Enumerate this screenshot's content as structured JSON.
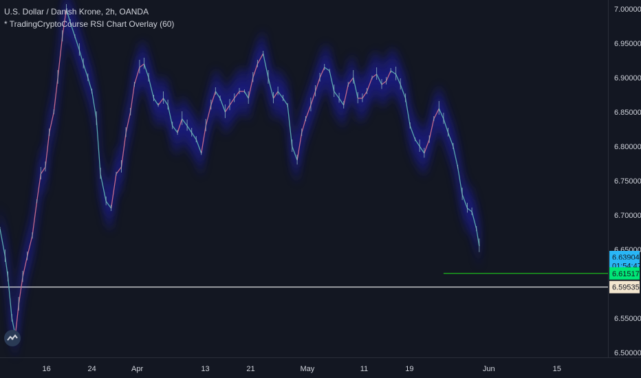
{
  "legend": {
    "title": "U.S. Dollar / Danish Krone, 2h, OANDA",
    "indicator": "* TradingCryptoCourse RSI Chart Overlay (60)"
  },
  "logo_icon": "tradingview-logo-icon",
  "colors": {
    "background": "#131722",
    "price_line": "#5aa9ad",
    "band": "#1b1e8c",
    "green_line": "#1ec91e",
    "white_line": "#ffffff",
    "badge_blue": "#29b6f6",
    "badge_green": "#00e676",
    "badge_cream": "#f3e6cf"
  },
  "price_badges": [
    {
      "label": "6.63904",
      "value": 6.63904,
      "color": "#29b6f6",
      "text_color": "#131722"
    },
    {
      "label": "01:54:47",
      "value": 6.6265,
      "color": "#29b6f6",
      "text_color": "#131722"
    },
    {
      "label": "6.61517",
      "value": 6.61517,
      "color": "#00e676",
      "text_color": "#131722"
    },
    {
      "label": "6.59535",
      "value": 6.59535,
      "color": "#f3e6cf",
      "text_color": "#131722"
    }
  ],
  "chart_data": {
    "type": "line",
    "title": "U.S. Dollar / Danish Krone, 2h, OANDA",
    "y_ticks": [
      "7.00000",
      "6.95000",
      "6.90000",
      "6.85000",
      "6.80000",
      "6.75000",
      "6.70000",
      "6.65000",
      "6.55000",
      "6.50000"
    ],
    "y_tick_values": [
      7.0,
      6.95,
      6.9,
      6.85,
      6.8,
      6.75,
      6.7,
      6.65,
      6.55,
      6.5
    ],
    "ylim": [
      6.493,
      7.013
    ],
    "x_ticks": [
      "16",
      "24",
      "Apr",
      "13",
      "21",
      "May",
      "11",
      "19",
      "Jun",
      "15"
    ],
    "x_tick_days": [
      16,
      24,
      32,
      44,
      52,
      62,
      72,
      80,
      94,
      106
    ],
    "xlim": [
      7.8,
      115.0
    ],
    "series": [
      {
        "days": [
          7.8,
          8.7,
          9.2,
          9.9,
          10.5,
          11.1,
          11.8,
          12.6,
          13.5,
          14.3,
          15.0,
          15.8,
          16.5,
          17.3,
          18.0,
          18.8,
          19.5,
          20.2,
          21.0,
          21.8,
          22.5,
          23.3,
          24.0,
          24.8,
          25.5,
          26.5,
          27.4,
          28.3,
          29.2,
          30.0,
          30.8,
          31.5,
          32.4,
          33.2,
          34.0,
          34.9,
          35.7,
          36.6,
          37.4,
          38.2,
          39.1,
          39.9,
          40.8,
          41.6,
          42.4,
          43.3,
          44.1,
          45.0,
          45.8,
          46.6,
          47.5,
          48.3,
          49.1,
          50.0,
          50.9,
          51.6,
          52.4,
          53.2,
          54.2,
          55.1,
          56.0,
          56.8,
          57.7,
          58.5,
          59.3,
          60.2,
          61.0,
          61.7,
          62.6,
          63.4,
          64.2,
          65.0,
          65.9,
          66.7,
          67.6,
          68.4,
          69.2,
          70.1,
          70.9,
          71.7,
          72.5,
          73.4,
          74.2,
          75.1,
          75.9,
          76.7,
          77.6,
          78.4,
          79.3,
          80.1,
          81.0,
          81.8,
          82.6,
          83.5,
          84.3,
          85.2,
          86.0,
          86.8,
          87.7,
          88.5,
          89.3,
          90.2,
          91.0,
          91.8,
          92.3
        ],
        "values": [
          6.68,
          6.64,
          6.61,
          6.55,
          6.525,
          6.57,
          6.61,
          6.64,
          6.67,
          6.72,
          6.76,
          6.77,
          6.82,
          6.85,
          6.9,
          6.96,
          7.0,
          6.98,
          6.96,
          6.94,
          6.92,
          6.9,
          6.88,
          6.84,
          6.76,
          6.72,
          6.71,
          6.76,
          6.77,
          6.82,
          6.85,
          6.89,
          6.915,
          6.92,
          6.9,
          6.87,
          6.86,
          6.87,
          6.86,
          6.83,
          6.82,
          6.84,
          6.83,
          6.82,
          6.81,
          6.79,
          6.83,
          6.86,
          6.88,
          6.87,
          6.85,
          6.86,
          6.87,
          6.88,
          6.88,
          6.87,
          6.9,
          6.92,
          6.935,
          6.9,
          6.87,
          6.88,
          6.87,
          6.86,
          6.8,
          6.78,
          6.82,
          6.84,
          6.86,
          6.88,
          6.9,
          6.915,
          6.91,
          6.88,
          6.87,
          6.86,
          6.89,
          6.9,
          6.87,
          6.87,
          6.88,
          6.9,
          6.905,
          6.89,
          6.895,
          6.91,
          6.905,
          6.89,
          6.87,
          6.83,
          6.81,
          6.8,
          6.79,
          6.81,
          6.84,
          6.855,
          6.84,
          6.82,
          6.8,
          6.77,
          6.73,
          6.71,
          6.705,
          6.68,
          6.655
        ]
      }
    ],
    "horizontal_lines": [
      {
        "value": 6.61517,
        "color": "#1ec91e",
        "from_day": 86.0
      },
      {
        "value": 6.59535,
        "color": "#ffffff",
        "from_day": 7.8
      }
    ],
    "grid": false
  }
}
